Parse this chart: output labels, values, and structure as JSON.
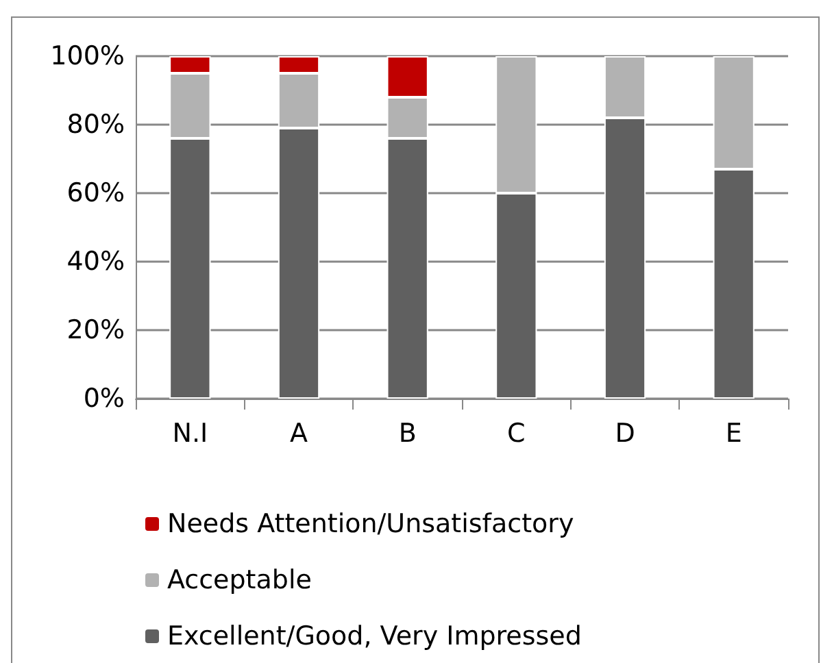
{
  "chart_data": {
    "type": "bar",
    "stacked": true,
    "categories": [
      "N.I",
      "A",
      "B",
      "C",
      "D",
      "E"
    ],
    "series": [
      {
        "name": "Excellent/Good, Very Impressed",
        "color": "#606060",
        "values": [
          76,
          79,
          76,
          60,
          82,
          67
        ]
      },
      {
        "name": "Acceptable",
        "color": "#b2b2b2",
        "values": [
          19,
          16,
          12,
          40,
          18,
          33
        ]
      },
      {
        "name": "Needs Attention/Unsatisfactory",
        "color": "#c00000",
        "values": [
          5,
          5,
          12,
          null,
          null,
          null
        ]
      }
    ],
    "ylim": [
      0,
      100
    ],
    "yticks": [
      {
        "value": 0,
        "label": "0%"
      },
      {
        "value": 20,
        "label": "20%"
      },
      {
        "value": 40,
        "label": "40%"
      },
      {
        "value": 60,
        "label": "60%"
      },
      {
        "value": 80,
        "label": "80%"
      },
      {
        "value": 100,
        "label": "100%"
      }
    ],
    "grid": "y",
    "legend": "bottom"
  }
}
